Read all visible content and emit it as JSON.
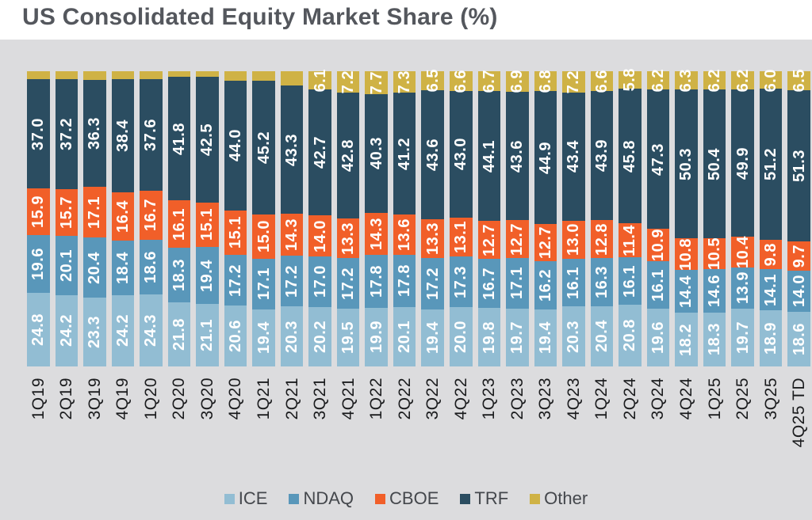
{
  "title": "US Consolidated Equity Market Share (%)",
  "colors": {
    "ice": "#92bdd3",
    "ndaq": "#5997ba",
    "cboe": "#f15f29",
    "trf": "#2b4d61",
    "other": "#cfb245",
    "background": "#dcdcde",
    "title_band": "#ffffff",
    "title_text": "#54575d",
    "axis_text": "#1b1c1e",
    "segment_label_text": "#ffffff",
    "legend_text": "#44474c"
  },
  "chart_data": {
    "type": "bar",
    "stacked": true,
    "unit": "%",
    "title": "US Consolidated Equity Market Share (%)",
    "xlabel": "",
    "ylabel": "",
    "ylim": [
      0,
      100
    ],
    "grid": false,
    "legend_position": "bottom",
    "categories": [
      "1Q19",
      "2Q19",
      "3Q19",
      "4Q19",
      "1Q20",
      "2Q20",
      "3Q20",
      "4Q20",
      "1Q21",
      "2Q21",
      "3Q21",
      "4Q21",
      "1Q22",
      "2Q22",
      "3Q22",
      "4Q22",
      "1Q23",
      "2Q23",
      "3Q23",
      "4Q23",
      "1Q24",
      "2Q24",
      "3Q24",
      "4Q24",
      "1Q25",
      "2Q25",
      "3Q25",
      "4Q25 TD"
    ],
    "series": [
      {
        "name": "ICE",
        "color": "ice",
        "first_labeled_index": 0,
        "values": [
          24.8,
          24.2,
          23.3,
          24.2,
          24.3,
          21.8,
          21.1,
          20.6,
          19.4,
          20.3,
          20.2,
          19.5,
          19.9,
          20.1,
          19.4,
          20.0,
          19.8,
          19.7,
          19.4,
          20.3,
          20.4,
          20.8,
          19.6,
          18.2,
          18.3,
          19.7,
          18.9,
          18.6
        ]
      },
      {
        "name": "NDAQ",
        "color": "ndaq",
        "first_labeled_index": 0,
        "values": [
          19.6,
          20.1,
          20.4,
          18.4,
          18.6,
          18.3,
          19.4,
          17.2,
          17.1,
          17.2,
          17.0,
          17.2,
          17.8,
          17.8,
          17.2,
          17.3,
          16.7,
          17.1,
          16.2,
          16.1,
          16.3,
          16.1,
          16.1,
          14.4,
          14.6,
          13.9,
          14.1,
          14.0
        ]
      },
      {
        "name": "CBOE",
        "color": "cboe",
        "first_labeled_index": 0,
        "values": [
          15.9,
          15.7,
          17.1,
          16.4,
          16.7,
          16.1,
          15.1,
          15.1,
          15.0,
          14.3,
          14.0,
          13.3,
          14.3,
          13.6,
          13.3,
          13.1,
          12.7,
          12.7,
          12.7,
          13.0,
          12.8,
          11.4,
          10.9,
          10.8,
          10.5,
          10.4,
          9.8,
          9.7
        ]
      },
      {
        "name": "TRF",
        "color": "trf",
        "first_labeled_index": 0,
        "values": [
          37.0,
          37.2,
          36.3,
          38.4,
          37.6,
          41.8,
          42.5,
          44.0,
          45.2,
          43.3,
          42.7,
          42.8,
          40.3,
          41.2,
          43.6,
          43.0,
          44.1,
          43.6,
          44.9,
          43.4,
          43.9,
          45.8,
          47.3,
          50.3,
          50.4,
          49.9,
          51.2,
          51.3
        ]
      },
      {
        "name": "Other",
        "color": "other",
        "first_labeled_index": 10,
        "values": [
          2.7,
          2.8,
          2.9,
          2.6,
          2.8,
          2.0,
          1.9,
          3.1,
          3.3,
          4.9,
          6.1,
          7.2,
          7.7,
          7.3,
          6.5,
          6.6,
          6.7,
          6.9,
          6.8,
          7.2,
          6.6,
          5.8,
          6.2,
          6.3,
          6.2,
          6.2,
          6.0,
          6.5
        ]
      }
    ],
    "legend": [
      "ICE",
      "NDAQ",
      "CBOE",
      "TRF",
      "Other"
    ]
  }
}
